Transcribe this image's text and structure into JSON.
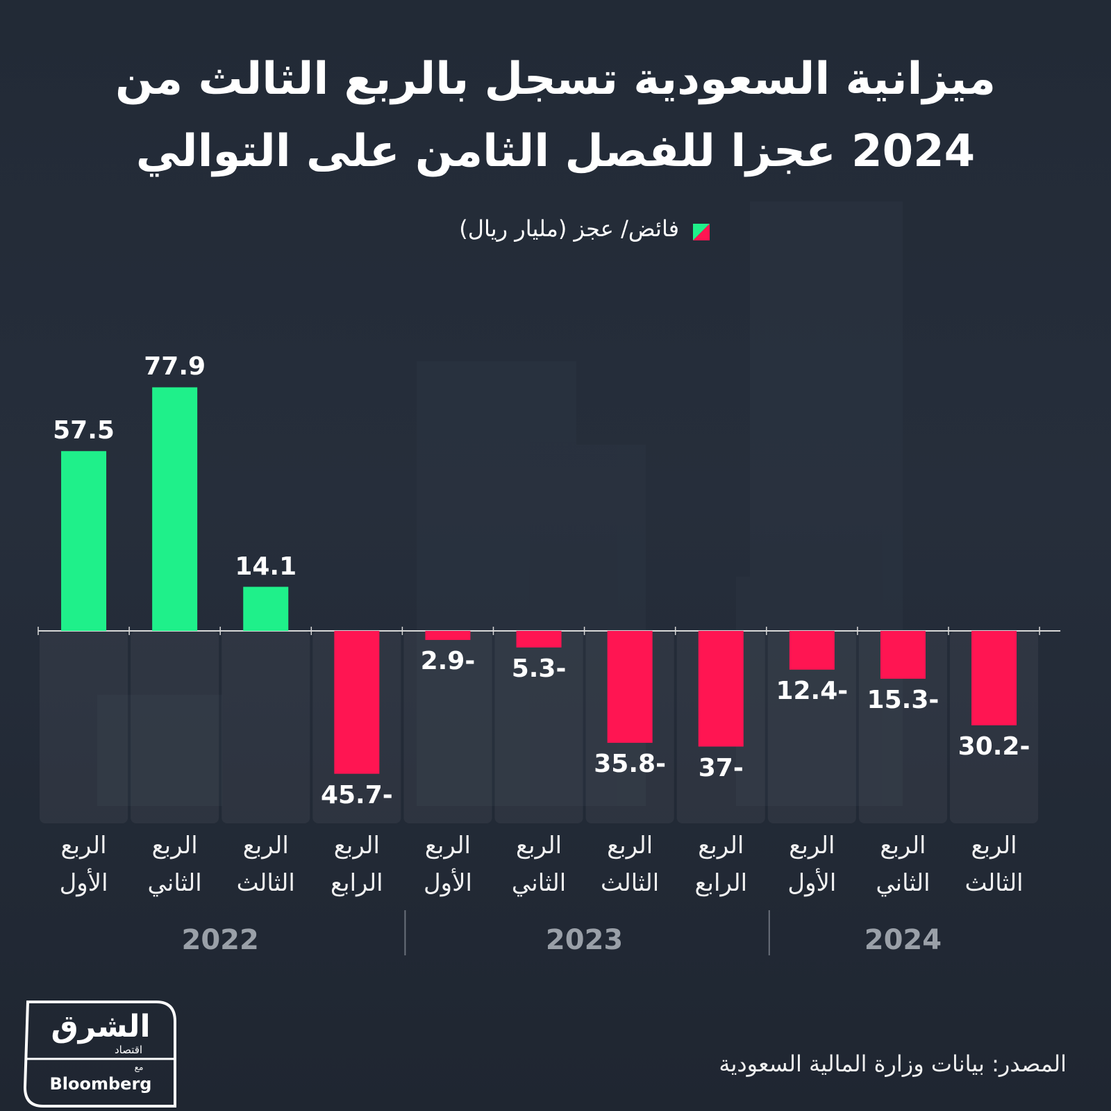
{
  "chart_data": {
    "type": "bar",
    "title": "ميزانية السعودية تسجل بالربع الثالث من 2024 عجزا للفصل الثامن على التوالي",
    "series_name": "فائض/ عجز (مليار ريال)",
    "positive_color": "#1ff08a",
    "negative_color": "#ff1552",
    "groups": [
      {
        "name": "2022",
        "categories": [
          "الربع الأول",
          "الربع الثاني",
          "الربع الثالث",
          "الربع الرابع"
        ],
        "values": [
          57.5,
          77.9,
          14.1,
          -45.7
        ],
        "value_labels": [
          "57.5",
          "77.9",
          "14.1",
          "45.7-"
        ]
      },
      {
        "name": "2023",
        "categories": [
          "الربع الأول",
          "الربع الثاني",
          "الربع الثالث",
          "الربع الرابع"
        ],
        "values": [
          -2.9,
          -5.3,
          -35.8,
          -37
        ],
        "value_labels": [
          "2.9-",
          "5.3-",
          "35.8-",
          "37-"
        ]
      },
      {
        "name": "2024",
        "categories": [
          "الربع الأول",
          "الربع الثاني",
          "الربع الثالث"
        ],
        "values": [
          -12.4,
          -15.3,
          -30.2
        ],
        "value_labels": [
          "12.4-",
          "15.3-",
          "30.2-"
        ]
      }
    ],
    "source": "المصدر: بيانات وزارة المالية السعودية",
    "logo": {
      "name": "الشرق",
      "subtitle": "اقتصاد",
      "with": "مع",
      "partner": "Bloomberg"
    }
  }
}
